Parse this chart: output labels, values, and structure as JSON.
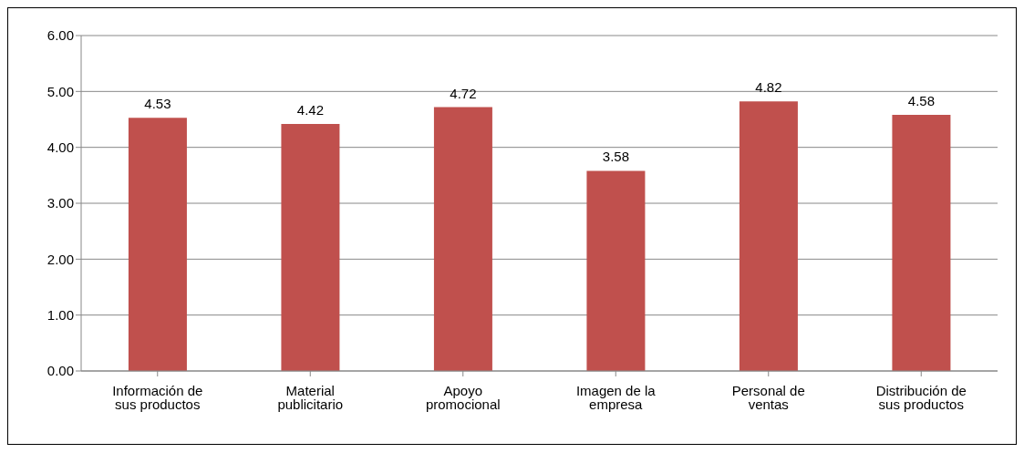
{
  "chart_data": {
    "type": "bar",
    "categories": [
      "Información de sus productos",
      "Material publicitario",
      "Apoyo promocional",
      "Imagen de la empresa",
      "Personal de ventas",
      "Distribución de sus productos"
    ],
    "values": [
      4.53,
      4.42,
      4.72,
      3.58,
      4.82,
      4.58
    ],
    "color": "#c0504d",
    "ylim": [
      0,
      6
    ],
    "yticks": [
      {
        "value": 0,
        "label": "0.00"
      },
      {
        "value": 1,
        "label": "1.00"
      },
      {
        "value": 2,
        "label": "2.00"
      },
      {
        "value": 3,
        "label": "3.00"
      },
      {
        "value": 4,
        "label": "4.00"
      },
      {
        "value": 5,
        "label": "5.00"
      },
      {
        "value": 6,
        "label": "6.00"
      }
    ],
    "grid": "y",
    "data_labels": true
  }
}
